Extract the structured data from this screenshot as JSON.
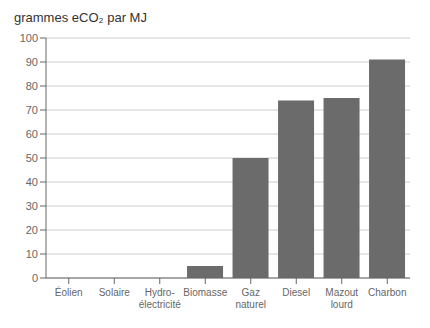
{
  "chart_data": {
    "type": "bar",
    "ylabel": "grammes eCO₂ par MJ",
    "categories": [
      "Éolien",
      "Solaire",
      "Hydro-\nélectricité",
      "Biomasse",
      "Gaz\nnaturel",
      "Diesel",
      "Mazout\nlourd",
      "Charbon"
    ],
    "values": [
      0,
      0,
      0,
      5,
      50,
      74,
      75,
      91
    ],
    "color": "#6b6b6b",
    "ylim": [
      0,
      100
    ],
    "yticks": [
      0,
      10,
      20,
      30,
      40,
      50,
      60,
      70,
      80,
      90,
      100
    ],
    "grid": true
  }
}
